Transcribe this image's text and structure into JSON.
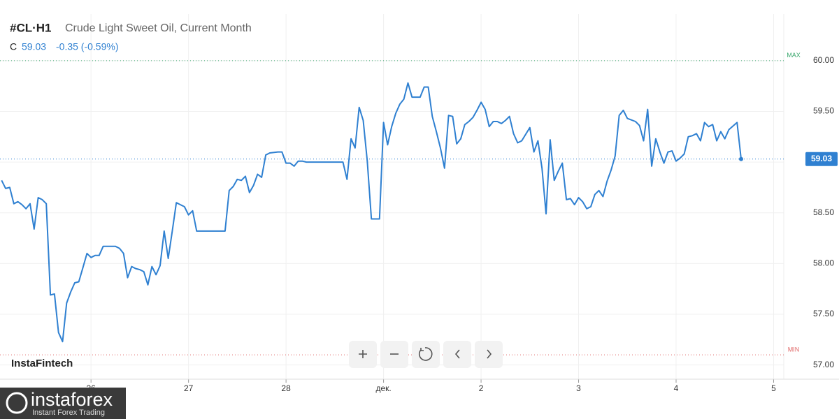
{
  "header": {
    "symbol": "#CL·H1",
    "description": "Crude Light Sweet Oil, Current Month",
    "ohlc_label": "C",
    "change": "-0.35 (-0.59%)"
  },
  "chart_data": {
    "type": "line",
    "color": "#2f80d1",
    "grid": true,
    "x": [
      -22,
      -21,
      -20,
      -19,
      -18,
      -17,
      -16,
      -15,
      -14,
      -13,
      -12,
      -11,
      -10,
      -9,
      -8,
      -7,
      -6,
      -5,
      -4,
      -3,
      -2,
      -1,
      0,
      1,
      2,
      3,
      4,
      6,
      7,
      8,
      9,
      10,
      11,
      12,
      13,
      14,
      15,
      16,
      17,
      18,
      19,
      20,
      21,
      22,
      23,
      24,
      25,
      26,
      33,
      34,
      35,
      36,
      37,
      38,
      39,
      40,
      41,
      42,
      43,
      44,
      46,
      47,
      48,
      49,
      50,
      51,
      52,
      53,
      62,
      63,
      64,
      65,
      66,
      67,
      68,
      69,
      71,
      72,
      73,
      74,
      75,
      76,
      77,
      78,
      79,
      81,
      82,
      83,
      84,
      85,
      86,
      87,
      88,
      89,
      90,
      91,
      92,
      93,
      94,
      95,
      96,
      97,
      98,
      99,
      100,
      101,
      102,
      103,
      104,
      105,
      106,
      108,
      109,
      110,
      111,
      112,
      113,
      114,
      115,
      116,
      117,
      118,
      119,
      120,
      121,
      122,
      123,
      124,
      125,
      126,
      127,
      128,
      129,
      130,
      131,
      132,
      134,
      135,
      136,
      137,
      138,
      139,
      140,
      141,
      142,
      143,
      144,
      145,
      146,
      147,
      148,
      149,
      150,
      151,
      152,
      153,
      154,
      155,
      156,
      157,
      159,
      160
    ],
    "values": [
      58.82,
      58.74,
      58.75,
      58.59,
      58.61,
      58.58,
      58.54,
      58.59,
      58.34,
      58.65,
      58.63,
      58.59,
      57.69,
      57.7,
      57.32,
      57.23,
      57.61,
      57.72,
      57.81,
      57.82,
      57.96,
      58.1,
      58.06,
      58.08,
      58.08,
      58.17,
      58.17,
      58.17,
      58.15,
      58.1,
      57.86,
      57.97,
      57.95,
      57.94,
      57.92,
      57.79,
      57.97,
      57.89,
      57.98,
      58.32,
      58.05,
      58.32,
      58.6,
      58.58,
      58.56,
      58.48,
      58.52,
      58.32,
      58.32,
      58.72,
      58.76,
      58.83,
      58.82,
      58.86,
      58.7,
      58.77,
      58.88,
      58.85,
      59.07,
      59.09,
      59.1,
      59.1,
      58.99,
      58.99,
      58.96,
      59.01,
      59.01,
      59.0,
      59.0,
      58.83,
      59.23,
      59.14,
      59.54,
      59.41,
      59.01,
      58.44,
      58.44,
      59.39,
      59.17,
      59.35,
      59.48,
      59.57,
      59.62,
      59.78,
      59.64,
      59.64,
      59.74,
      59.74,
      59.45,
      59.3,
      59.14,
      58.94,
      59.46,
      59.45,
      59.18,
      59.23,
      59.37,
      59.4,
      59.44,
      59.51,
      59.59,
      59.52,
      59.35,
      59.4,
      59.4,
      59.38,
      59.41,
      59.45,
      59.28,
      59.19,
      59.21,
      59.34,
      59.1,
      59.21,
      58.94,
      58.49,
      59.22,
      58.82,
      58.91,
      58.99,
      58.63,
      58.64,
      58.58,
      58.65,
      58.61,
      58.54,
      58.56,
      58.68,
      58.72,
      58.66,
      58.81,
      58.92,
      59.06,
      59.46,
      59.51,
      59.43,
      59.4,
      59.36,
      59.21,
      59.52,
      58.96,
      59.23,
      59.1,
      58.99,
      59.1,
      59.11,
      59.01,
      59.04,
      59.08,
      59.25,
      59.26,
      59.28,
      59.21,
      59.39,
      59.35,
      59.37,
      59.21,
      59.3,
      59.23,
      59.32,
      59.39,
      59.03
    ],
    "xlim": [
      -22.4,
      170.5
    ],
    "xticks": [
      {
        "value": 0,
        "label": "26"
      },
      {
        "value": 24,
        "label": "27"
      },
      {
        "value": 48,
        "label": "28"
      },
      {
        "value": 72,
        "label": "дек."
      },
      {
        "value": 96,
        "label": "2"
      },
      {
        "value": 120,
        "label": "3"
      },
      {
        "value": 144,
        "label": "4"
      },
      {
        "value": 168,
        "label": "5"
      }
    ],
    "ylim": [
      56.86,
      60.46
    ],
    "yticks": [
      {
        "value": 57,
        "label": "57.00"
      },
      {
        "value": 57.5,
        "label": "57.50"
      },
      {
        "value": 58,
        "label": "58.00"
      },
      {
        "value": 58.5,
        "label": "58.50"
      },
      {
        "value": 59,
        "label": "59.00"
      },
      {
        "value": 59.5,
        "label": "59.50"
      },
      {
        "value": 60,
        "label": "60.00"
      }
    ],
    "max": {
      "value": 60.0,
      "label": "MAX"
    },
    "min": {
      "value": 57.1,
      "label": "MIN"
    }
  },
  "branding": {
    "watermark": "InstaFintech",
    "logo": "instaforex",
    "tagline": "Instant Forex Trading"
  }
}
